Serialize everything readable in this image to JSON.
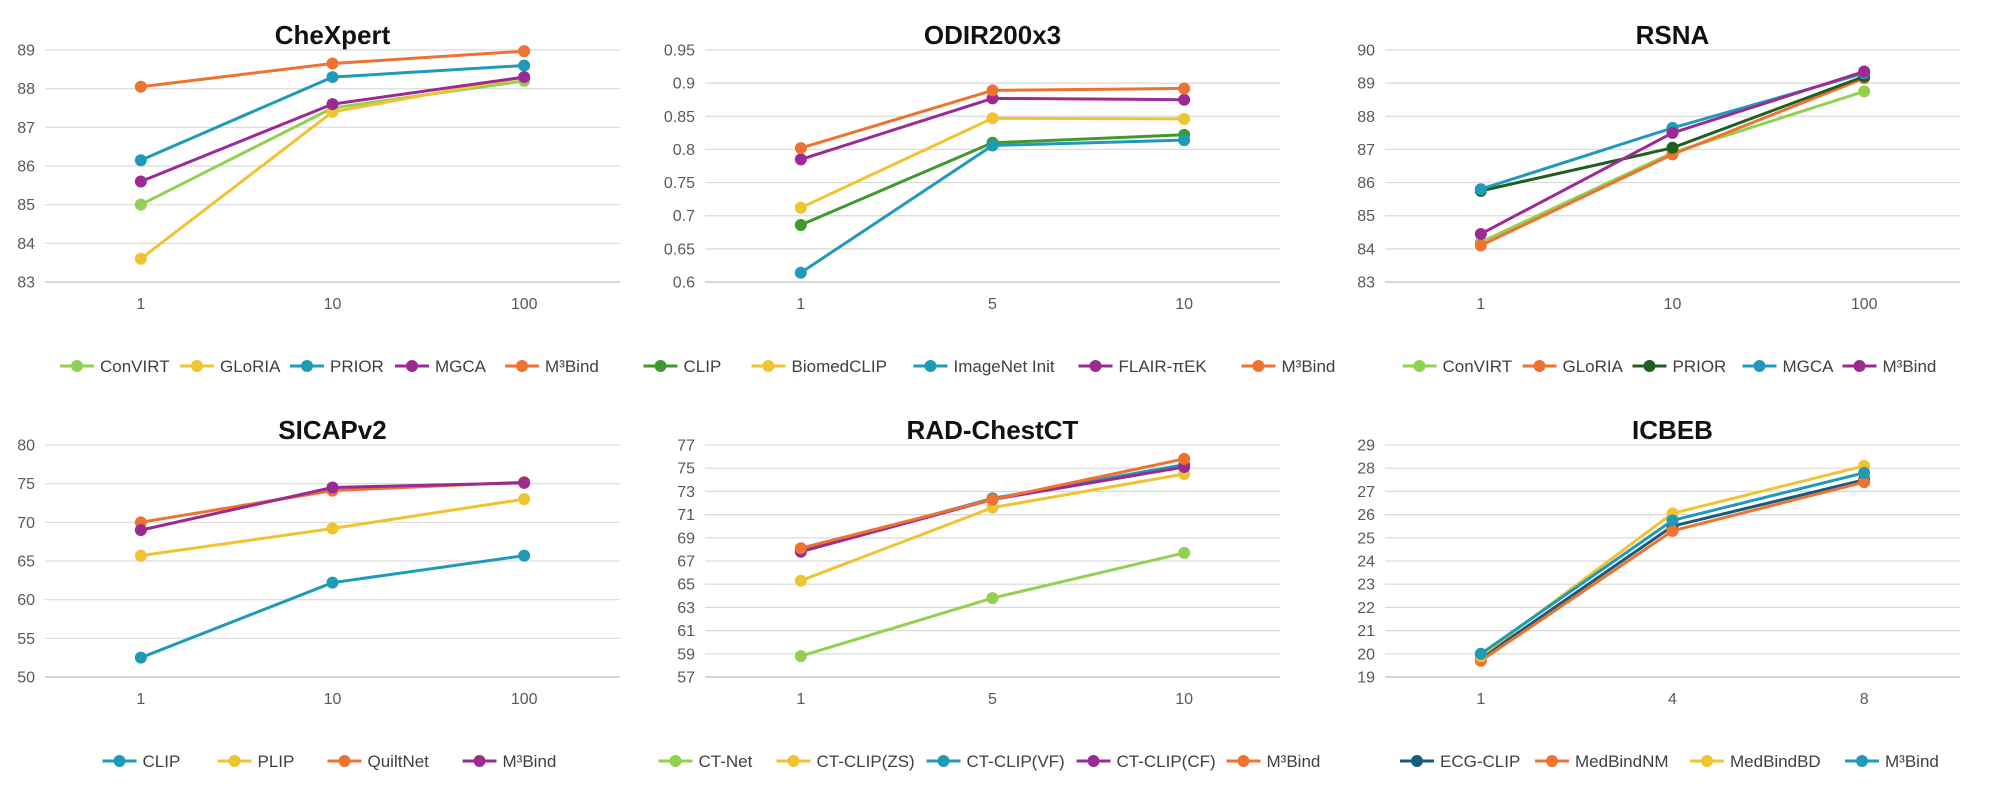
{
  "chart_data": [
    {
      "type": "line",
      "title": "CheXpert",
      "categories": [
        "1",
        "10",
        "100"
      ],
      "ylim": [
        83,
        89
      ],
      "yticks": [
        83,
        84,
        85,
        86,
        87,
        88,
        89
      ],
      "ytick_labels": [
        "83",
        "84",
        "85",
        "86",
        "87",
        "88",
        "89"
      ],
      "grid": true,
      "legend": "bottom",
      "series": [
        {
          "name": "ConVIRT",
          "color": "#92d050",
          "values": [
            85.0,
            87.5,
            88.2
          ]
        },
        {
          "name": "GLoRIA",
          "color": "#f0c330",
          "values": [
            83.6,
            87.4,
            88.3
          ]
        },
        {
          "name": "PRIOR",
          "color": "#1f9ab8",
          "values": [
            86.15,
            88.3,
            88.6
          ]
        },
        {
          "name": "MGCA",
          "color": "#9b2a93",
          "values": [
            85.6,
            87.6,
            88.3
          ]
        },
        {
          "name": "M³Bind",
          "color": "#ee7230",
          "values": [
            88.05,
            88.65,
            88.97
          ]
        }
      ]
    },
    {
      "type": "line",
      "title": "ODIR200x3",
      "categories": [
        "1",
        "5",
        "10"
      ],
      "ylim": [
        0.6,
        0.95
      ],
      "yticks": [
        0.6,
        0.65,
        0.7,
        0.75,
        0.8,
        0.85,
        0.9,
        0.95
      ],
      "ytick_labels": [
        "0.6",
        "0.65",
        "0.7",
        "0.75",
        "0.8",
        "0.85",
        "0.9",
        "0.95"
      ],
      "grid": true,
      "legend": "bottom",
      "series": [
        {
          "name": "CLIP",
          "color": "#3e9a2c",
          "values": [
            0.686,
            0.81,
            0.822
          ]
        },
        {
          "name": "BiomedCLIP",
          "color": "#f0c330",
          "values": [
            0.712,
            0.847,
            0.846
          ]
        },
        {
          "name": "ImageNet Init",
          "color": "#1f9ab8",
          "values": [
            0.614,
            0.806,
            0.814
          ]
        },
        {
          "name": "FLAIR-πEK",
          "color": "#9b2a93",
          "values": [
            0.785,
            0.877,
            0.875
          ]
        },
        {
          "name": "M³Bind",
          "color": "#ee7230",
          "values": [
            0.802,
            0.889,
            0.892
          ]
        }
      ]
    },
    {
      "type": "line",
      "title": "RSNA",
      "categories": [
        "1",
        "10",
        "100"
      ],
      "ylim": [
        83,
        90
      ],
      "yticks": [
        83,
        84,
        85,
        86,
        87,
        88,
        89,
        90
      ],
      "ytick_labels": [
        "83",
        "84",
        "85",
        "86",
        "87",
        "88",
        "89",
        "90"
      ],
      "grid": true,
      "legend": "bottom",
      "series": [
        {
          "name": "ConVIRT",
          "color": "#92d050",
          "values": [
            84.2,
            86.9,
            88.75
          ]
        },
        {
          "name": "GLoRIA",
          "color": "#ee7230",
          "values": [
            84.1,
            86.85,
            89.15
          ]
        },
        {
          "name": "PRIOR",
          "color": "#1f5f1f",
          "values": [
            85.75,
            87.05,
            89.2
          ]
        },
        {
          "name": "MGCA",
          "color": "#1f9ab8",
          "values": [
            85.8,
            87.65,
            89.3
          ]
        },
        {
          "name": "M³Bind",
          "color": "#9b2a93",
          "values": [
            84.45,
            87.5,
            89.35
          ]
        }
      ]
    },
    {
      "type": "line",
      "title": "SICAPv2",
      "categories": [
        "1",
        "10",
        "100"
      ],
      "ylim": [
        50,
        80
      ],
      "yticks": [
        50,
        55,
        60,
        65,
        70,
        75,
        80
      ],
      "ytick_labels": [
        "50",
        "55",
        "60",
        "65",
        "70",
        "75",
        "80"
      ],
      "grid": true,
      "legend": "bottom",
      "series": [
        {
          "name": "CLIP",
          "color": "#1f9ab8",
          "values": [
            52.5,
            62.2,
            65.7
          ]
        },
        {
          "name": "PLIP",
          "color": "#f0c330",
          "values": [
            65.7,
            69.2,
            73.0
          ]
        },
        {
          "name": "QuiltNet",
          "color": "#ee7230",
          "values": [
            70.0,
            74.1,
            75.2
          ]
        },
        {
          "name": "M³Bind",
          "color": "#9b2a93",
          "values": [
            69.0,
            74.5,
            75.1
          ]
        }
      ]
    },
    {
      "type": "line",
      "title": "RAD-ChestCT",
      "categories": [
        "1",
        "5",
        "10"
      ],
      "ylim": [
        57,
        77
      ],
      "yticks": [
        57,
        59,
        61,
        63,
        65,
        67,
        69,
        71,
        73,
        75,
        77
      ],
      "ytick_labels": [
        "57",
        "59",
        "61",
        "63",
        "65",
        "67",
        "69",
        "71",
        "73",
        "75",
        "77"
      ],
      "grid": true,
      "legend": "bottom",
      "series": [
        {
          "name": "CT-Net",
          "color": "#92d050",
          "values": [
            58.8,
            63.8,
            67.7
          ]
        },
        {
          "name": "CT-CLIP(ZS)",
          "color": "#f0c330",
          "values": [
            65.3,
            71.6,
            74.5
          ]
        },
        {
          "name": "CT-CLIP(VF)",
          "color": "#1f9ab8",
          "values": [
            67.9,
            72.4,
            75.3
          ]
        },
        {
          "name": "CT-CLIP(CF)",
          "color": "#9b2a93",
          "values": [
            67.8,
            72.3,
            75.1
          ]
        },
        {
          "name": "M³Bind",
          "color": "#ee7230",
          "values": [
            68.1,
            72.3,
            75.8
          ]
        }
      ]
    },
    {
      "type": "line",
      "title": "ICBEB",
      "categories": [
        "1",
        "4",
        "8"
      ],
      "ylim": [
        19,
        29
      ],
      "yticks": [
        19,
        20,
        21,
        22,
        23,
        24,
        25,
        26,
        27,
        28,
        29
      ],
      "ytick_labels": [
        "19",
        "20",
        "21",
        "22",
        "23",
        "24",
        "25",
        "26",
        "27",
        "28",
        "29"
      ],
      "grid": true,
      "legend": "bottom",
      "series": [
        {
          "name": "ECG-CLIP",
          "color": "#1a5a7a",
          "values": [
            19.8,
            25.5,
            27.5
          ]
        },
        {
          "name": "MedBindNM",
          "color": "#ee7230",
          "values": [
            19.7,
            25.3,
            27.4
          ]
        },
        {
          "name": "MedBindBD",
          "color": "#f0c330",
          "values": [
            19.9,
            26.05,
            28.1
          ]
        },
        {
          "name": "M³Bind",
          "color": "#1f9ab8",
          "values": [
            20.0,
            25.75,
            27.8
          ]
        }
      ]
    }
  ]
}
